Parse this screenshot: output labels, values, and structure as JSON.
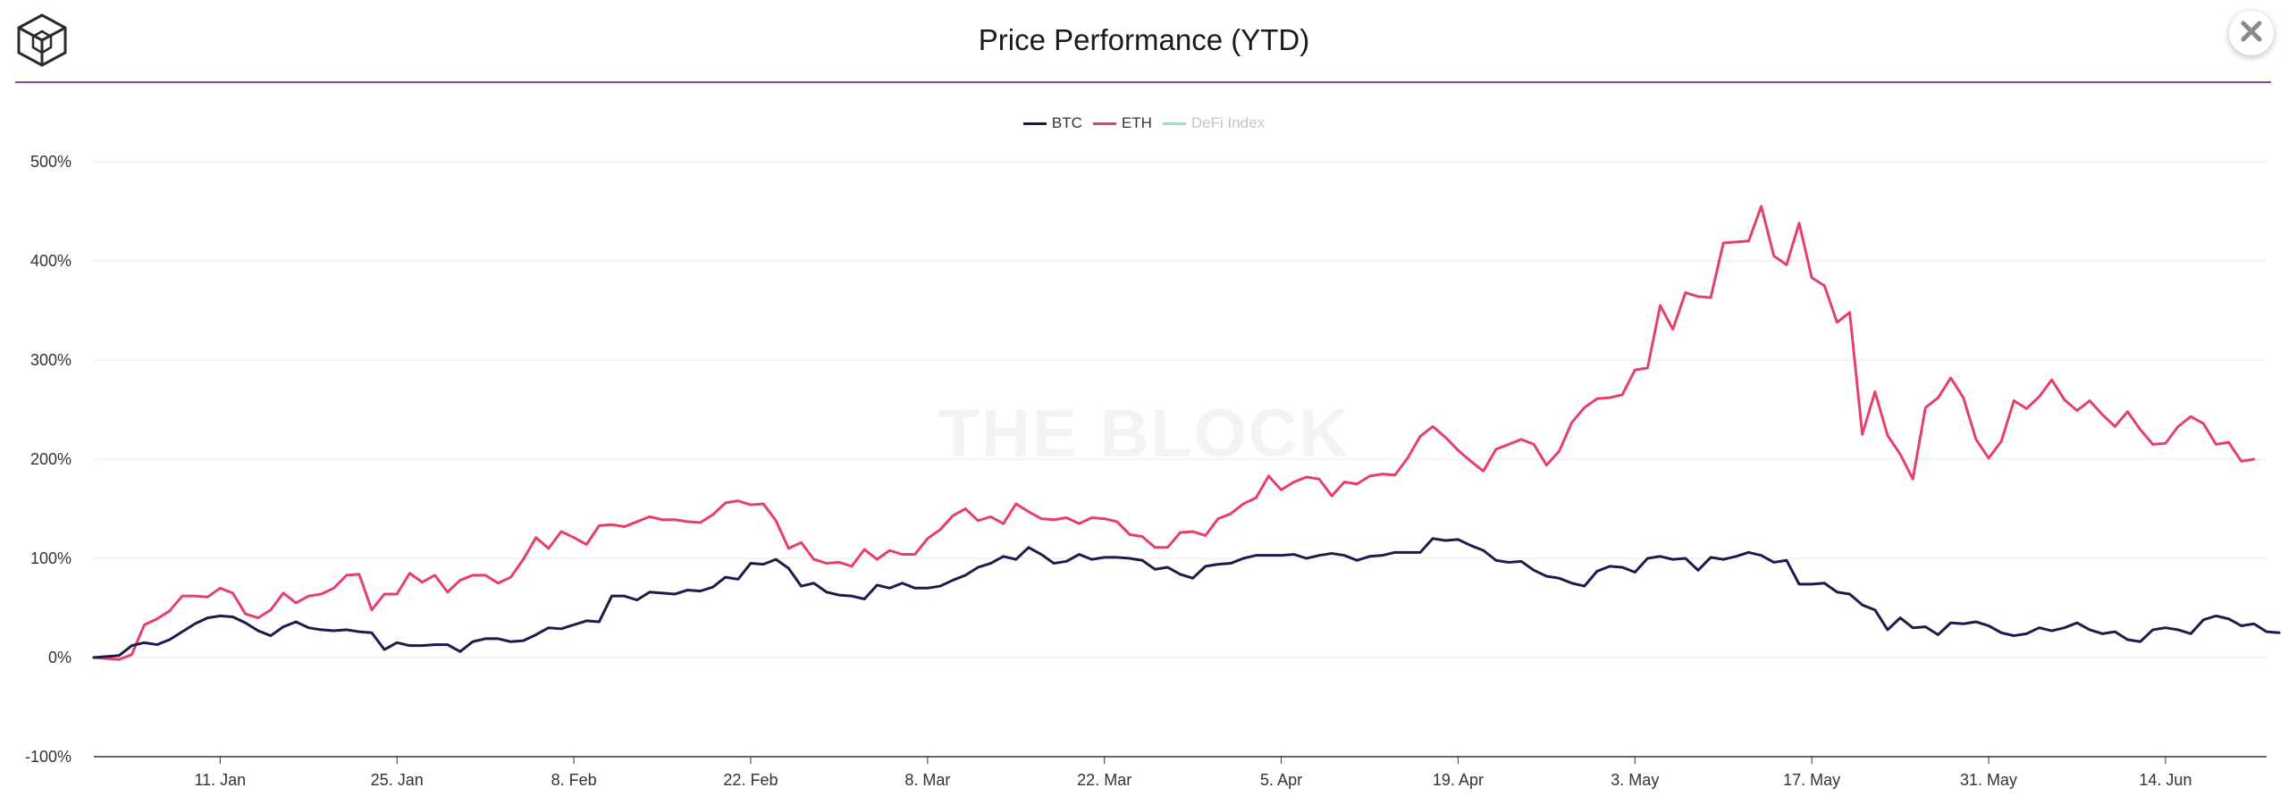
{
  "header": {
    "title": "Price Performance (YTD)"
  },
  "icons": {
    "logo": "the-block-logo-icon",
    "close": "close-icon"
  },
  "watermark": "THE BLOCK",
  "colors": {
    "btc": "#1f1a4d",
    "eth": "#e63f6a",
    "defi": "#8fe3d4",
    "accent": "#8e3fbf"
  },
  "chart_data": {
    "type": "line",
    "title": "Price Performance (YTD)",
    "xlabel": "",
    "ylabel": "",
    "ylim": [
      -100,
      500
    ],
    "y_ticks": [
      -100,
      0,
      100,
      200,
      300,
      400,
      500
    ],
    "y_tick_labels": [
      "-100%",
      "0%",
      "100%",
      "200%",
      "300%",
      "400%",
      "500%"
    ],
    "x_tick_labels": [
      "11. Jan",
      "25. Jan",
      "8. Feb",
      "22. Feb",
      "8. Mar",
      "22. Mar",
      "5. Apr",
      "19. Apr",
      "3. May",
      "17. May",
      "31. May",
      "14. Jun"
    ],
    "x_tick_positions": [
      10,
      24,
      38,
      52,
      66,
      80,
      94,
      108,
      122,
      136,
      150,
      164
    ],
    "x_range": [
      0,
      172
    ],
    "grid": true,
    "legend_position": "top-center",
    "series": [
      {
        "name": "BTC",
        "visible": true,
        "color": "#1f1a4d",
        "values": [
          0,
          1,
          2,
          12,
          15,
          13,
          18,
          26,
          34,
          40,
          42,
          41,
          35,
          27,
          22,
          31,
          36,
          30,
          28,
          27,
          28,
          26,
          25,
          8,
          15,
          12,
          12,
          13,
          13,
          6,
          16,
          19,
          19,
          16,
          17,
          23,
          30,
          29,
          33,
          37,
          36,
          62,
          62,
          58,
          66,
          65,
          64,
          68,
          67,
          71,
          81,
          79,
          95,
          94,
          99,
          90,
          72,
          75,
          66,
          63,
          62,
          59,
          73,
          70,
          75,
          70,
          70,
          72,
          78,
          83,
          91,
          95,
          102,
          99,
          111,
          104,
          95,
          97,
          104,
          99,
          101,
          101,
          100,
          98,
          89,
          91,
          84,
          80,
          92,
          94,
          95,
          100,
          103,
          103,
          103,
          104,
          100,
          103,
          105,
          103,
          98,
          102,
          103,
          106,
          106,
          106,
          120,
          118,
          119,
          113,
          108,
          98,
          96,
          97,
          88,
          82,
          80,
          75,
          72,
          87,
          92,
          91,
          86,
          100,
          102,
          99,
          100,
          88,
          101,
          99,
          102,
          106,
          103,
          96,
          98,
          74,
          74,
          75,
          66,
          64,
          53,
          48,
          28,
          40,
          30,
          31,
          23,
          35,
          34,
          36,
          32,
          25,
          22,
          24,
          30,
          27,
          30,
          35,
          28,
          24,
          26,
          18,
          16,
          28,
          30,
          28,
          24,
          38,
          42,
          39,
          32,
          34,
          26,
          25
        ]
      },
      {
        "name": "ETH",
        "visible": true,
        "color": "#e63f6a",
        "values": [
          0,
          -1,
          -2,
          3,
          33,
          39,
          47,
          62,
          62,
          61,
          70,
          65,
          44,
          40,
          48,
          65,
          55,
          62,
          64,
          70,
          83,
          84,
          48,
          64,
          64,
          85,
          76,
          83,
          66,
          78,
          83,
          83,
          75,
          81,
          99,
          121,
          110,
          127,
          121,
          114,
          133,
          134,
          132,
          137,
          142,
          139,
          139,
          137,
          136,
          144,
          156,
          158,
          154,
          155,
          138,
          110,
          116,
          99,
          95,
          96,
          92,
          109,
          99,
          108,
          104,
          104,
          120,
          129,
          143,
          150,
          138,
          142,
          135,
          155,
          147,
          140,
          139,
          141,
          135,
          141,
          140,
          137,
          124,
          122,
          111,
          111,
          126,
          127,
          123,
          140,
          145,
          155,
          161,
          183,
          169,
          177,
          182,
          180,
          163,
          177,
          175,
          183,
          185,
          184,
          201,
          223,
          233,
          222,
          209,
          198,
          188,
          210,
          215,
          220,
          215,
          194,
          208,
          237,
          252,
          261,
          262,
          265,
          290,
          292,
          355,
          331,
          368,
          364,
          363,
          418,
          419,
          420,
          455,
          405,
          396,
          438,
          383,
          375,
          338,
          348,
          225,
          268,
          224,
          205,
          180,
          252,
          262,
          282,
          262,
          220,
          201,
          218,
          259,
          251,
          263,
          280,
          260,
          249,
          259,
          245,
          233,
          248,
          230,
          215,
          216,
          233,
          243,
          236,
          215,
          217,
          198,
          200
        ]
      },
      {
        "name": "DeFi Index",
        "visible": false,
        "color": "#8fe3d4",
        "values": []
      }
    ]
  }
}
